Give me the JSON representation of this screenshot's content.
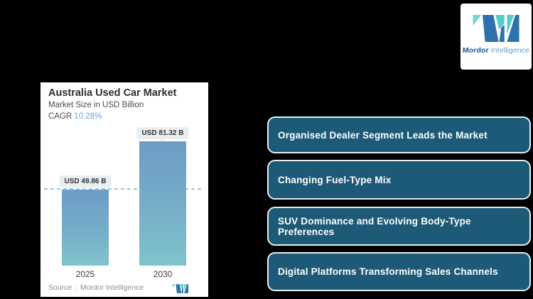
{
  "brand": {
    "name_bold": "Mordor",
    "name_light": "Intelligence"
  },
  "chart": {
    "title": "Australia Used Car Market",
    "subtitle": "Market Size in USD Billion",
    "cagr_label": "CAGR ",
    "cagr_value": "10.28%",
    "source_label": "Source :",
    "source_value": "Mordor Intelligence"
  },
  "chart_data": {
    "type": "bar",
    "title": "Australia Used Car Market",
    "subtitle": "Market Size in USD Billion",
    "cagr": "10.28%",
    "unit": "USD Billion",
    "categories": [
      "2025",
      "2030"
    ],
    "values": [
      49.86,
      81.32
    ],
    "value_labels": [
      "USD 49.86 B",
      "USD 81.32 B"
    ],
    "reference_dashed_line_at": 49.86,
    "ylim": [
      0,
      85
    ],
    "grid": false,
    "legend": false
  },
  "highlights": [
    {
      "label": "Organised Dealer Segment Leads the Market"
    },
    {
      "label": "Changing Fuel-Type Mix"
    },
    {
      "label": "SUV Dominance and Evolving Body-Type Preferences"
    },
    {
      "label": "Digital Platforms Transforming Sales Channels"
    }
  ],
  "icons": {
    "brand_mark": "mordor-intelligence-m-logo"
  },
  "colors": {
    "background": "#000000",
    "card_bg": "#ffffff",
    "logo_dark_blue": "#2d72ad",
    "logo_teal": "#5accc9",
    "logo_teal_light": "#7cd6d0",
    "cagr_value": "#6fa3d4",
    "bar_top": "#6c9cc5",
    "bar_bottom": "#80c4cc",
    "dashed_line": "#9cc3d6",
    "button_bg": "#1d5a78",
    "button_border": "#e8eef1",
    "button_text": "#ffffff"
  }
}
